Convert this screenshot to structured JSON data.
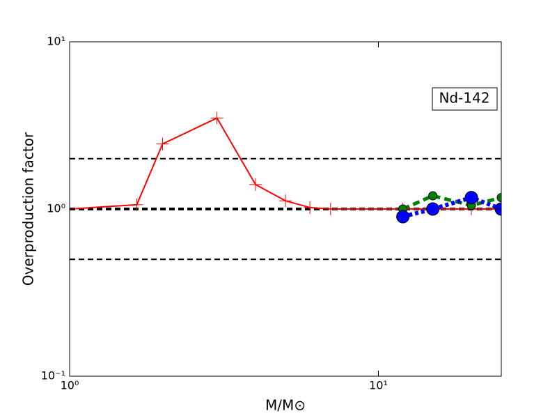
{
  "chart_data": {
    "type": "line",
    "xlabel": "M/M⊙",
    "ylabel": "Overproduction factor",
    "annotation": "Nd-142",
    "xscale": "log",
    "yscale": "log",
    "xlim": [
      1,
      25
    ],
    "ylim": [
      0.1,
      10
    ],
    "xticks": [
      {
        "value": 1,
        "label": "10⁰"
      },
      {
        "value": 10,
        "label": "10¹"
      }
    ],
    "yticks": [
      {
        "value": 0.1,
        "label": "10⁻¹"
      },
      {
        "value": 1,
        "label": "10⁰"
      },
      {
        "value": 10,
        "label": "10¹"
      }
    ],
    "hlines": [
      2,
      1,
      0.5
    ],
    "series": [
      {
        "color": "#ff0000",
        "linestyle": "solid",
        "marker": "plus",
        "x": [
          1,
          1.65,
          2,
          3,
          4,
          5,
          6,
          7,
          12,
          15,
          20,
          25
        ],
        "values": [
          1.0,
          1.06,
          2.45,
          3.5,
          1.4,
          1.12,
          1.02,
          1.0,
          1.0,
          1.0,
          1.0,
          1.0
        ]
      },
      {
        "color": "#008000",
        "linestyle": "dashed",
        "marker": "circle",
        "x": [
          12,
          15,
          20,
          25
        ],
        "values": [
          1.0,
          1.2,
          1.05,
          1.17
        ]
      },
      {
        "color": "#0000ff",
        "linestyle": "dotted",
        "marker": "circle",
        "x": [
          12,
          15,
          20,
          25
        ],
        "values": [
          0.9,
          1.0,
          1.17,
          1.0
        ]
      }
    ]
  }
}
